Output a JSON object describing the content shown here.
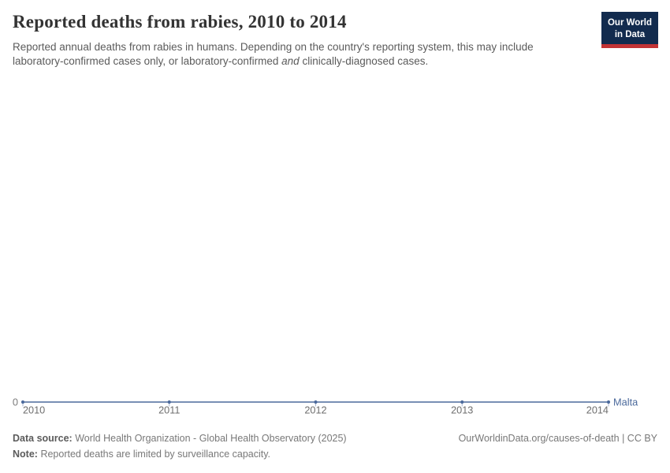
{
  "header": {
    "title": "Reported deaths from rabies, 2010 to 2014",
    "subtitle_line1": "Reported annual deaths from rabies in humans. Depending on the country's reporting system, this may include",
    "subtitle_line2_pre": "laboratory-confirmed cases only, or laboratory-confirmed",
    "subtitle_line2_italic": "and",
    "subtitle_line2_post": "clinically-diagnosed cases.",
    "logo": {
      "line1": "Our World",
      "line2": "in Data",
      "bg_color": "#122b4e",
      "bar_color": "#c23335"
    }
  },
  "chart_data": {
    "type": "line",
    "x": [
      2010,
      2011,
      2012,
      2013,
      2014
    ],
    "x_tick_labels": [
      "2010",
      "2011",
      "2012",
      "2013",
      "2014"
    ],
    "series": [
      {
        "name": "Malta",
        "color": "#4c6a9c",
        "values": [
          0,
          0,
          0,
          0,
          0
        ]
      }
    ],
    "y_axis_zero_label": "0",
    "ylim": [
      0,
      0
    ],
    "grid": false,
    "legend_position": "right-of-line-end",
    "axis_label_color": "#6e6e6e",
    "tick_color": "#a8b6d0"
  },
  "footer": {
    "datasource_label": "Data source:",
    "datasource_text": "World Health Organization - Global Health Observatory (2025)",
    "note_label": "Note:",
    "note_text": "Reported deaths are limited by surveillance capacity.",
    "link": "OurWorldinData.org/causes-of-death | CC BY"
  }
}
